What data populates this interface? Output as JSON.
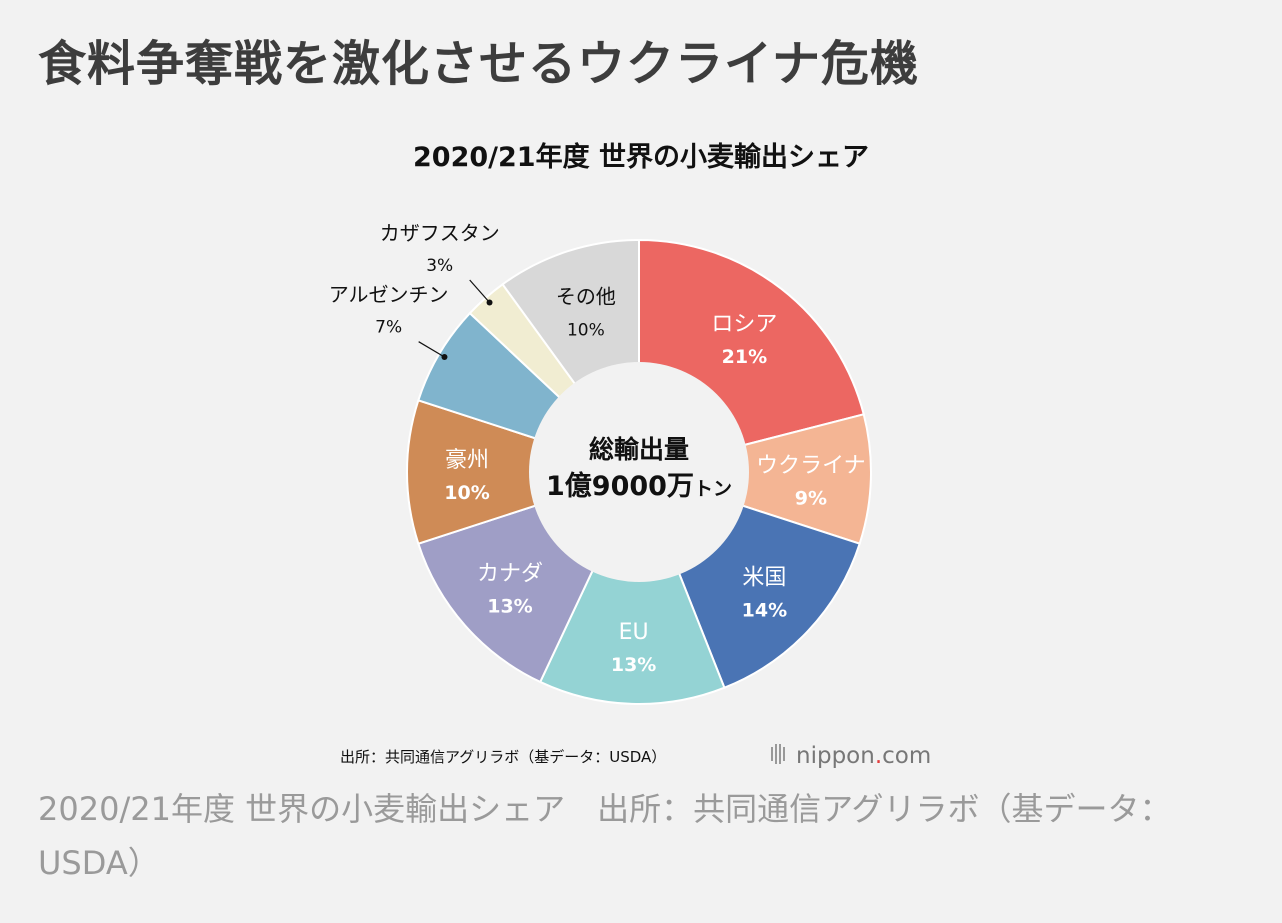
{
  "headline": "食料争奪戦を激化させるウクライナ危機",
  "caption": "2020/21年度 世界の小麦輸出シェア　出所：共同通信アグリラボ（基データ：USDA）",
  "chart_data": {
    "type": "pie",
    "title": "2020/21年度 世界の小麦輸出シェア",
    "center": {
      "line1": "総輸出量",
      "line2": "1億9000万",
      "unit": "トン"
    },
    "slices": [
      {
        "label": "ロシア",
        "pct_label": "21%",
        "value": 21,
        "color": "#ec6762"
      },
      {
        "label": "ウクライナ",
        "pct_label": "9%",
        "value": 9,
        "color": "#f4b594"
      },
      {
        "label": "米国",
        "pct_label": "14%",
        "value": 14,
        "color": "#4a74b4"
      },
      {
        "label": "EU",
        "pct_label": "13%",
        "value": 13,
        "color": "#94d3d4"
      },
      {
        "label": "カナダ",
        "pct_label": "13%",
        "value": 13,
        "color": "#9f9ec6"
      },
      {
        "label": "豪州",
        "pct_label": "10%",
        "value": 10,
        "color": "#cf8b56"
      },
      {
        "label": "アルゼンチン",
        "pct_label": "7%",
        "value": 7,
        "color": "#80b4cd"
      },
      {
        "label": "カザフスタン",
        "pct_label": "3%",
        "value": 3,
        "color": "#f1edd2"
      },
      {
        "label": "その他",
        "pct_label": "10%",
        "value": 10,
        "color": "#d8d8d8"
      }
    ],
    "source": "出所：共同通信アグリラボ（基データ：USDA）",
    "brand": {
      "left": "nippon",
      "dot": ".",
      "right": "com"
    }
  }
}
